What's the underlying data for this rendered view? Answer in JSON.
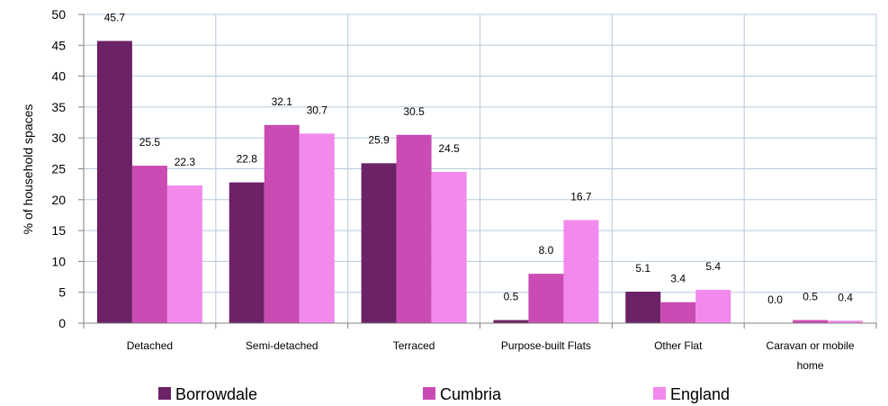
{
  "chart_data": {
    "type": "bar",
    "title": "",
    "xlabel": "",
    "ylabel": "% of household spaces",
    "ylim": [
      0,
      50
    ],
    "yticks": [
      0,
      5,
      10,
      15,
      20,
      25,
      30,
      35,
      40,
      45,
      50
    ],
    "grid": true,
    "legend_position": "bottom",
    "categories": [
      [
        "Detached"
      ],
      [
        "Semi-detached"
      ],
      [
        "Terraced"
      ],
      [
        "Purpose-built Flats"
      ],
      [
        "Other Flat"
      ],
      [
        "Caravan or mobile",
        "home"
      ]
    ],
    "series": [
      {
        "name": "Borrowdale",
        "color": "#6b2267",
        "values": [
          45.7,
          22.8,
          25.9,
          0.5,
          5.1,
          0.0
        ],
        "labels": [
          "45.7",
          "22.8",
          "25.9",
          "0.5",
          "5.1",
          "0.0"
        ]
      },
      {
        "name": "Cumbria",
        "color": "#c94bb3",
        "values": [
          25.5,
          32.1,
          30.5,
          8.0,
          3.4,
          0.5
        ],
        "labels": [
          "25.5",
          "32.1",
          "30.5",
          "8.0",
          "3.4",
          "0.5"
        ]
      },
      {
        "name": "England",
        "color": "#f28aed",
        "values": [
          22.3,
          30.7,
          24.5,
          16.7,
          5.4,
          0.4
        ],
        "labels": [
          "22.3",
          "30.7",
          "24.5",
          "16.7",
          "5.4",
          "0.4"
        ]
      }
    ]
  }
}
